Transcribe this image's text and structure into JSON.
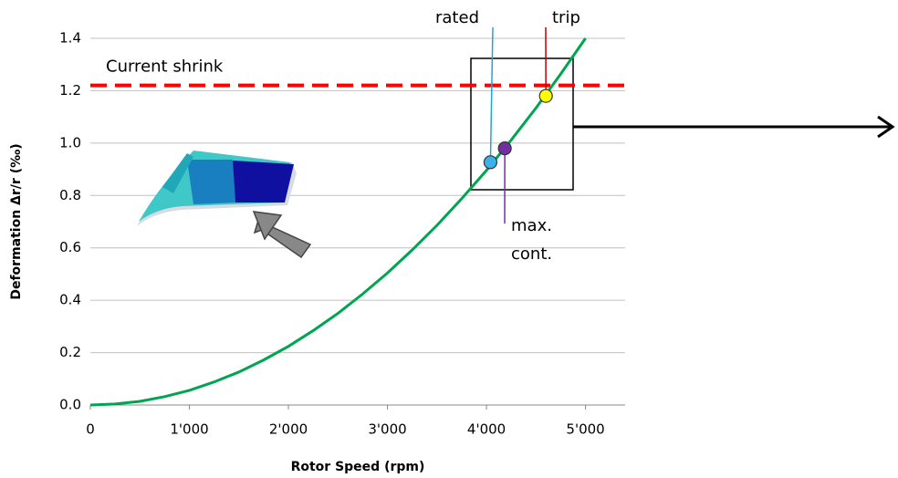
{
  "chart_data": {
    "type": "line",
    "x_label": "Rotor Speed (rpm)",
    "y_label": "Deformation Δr/r (‰)",
    "xlim": [
      0,
      5400
    ],
    "ylim": [
      0,
      1.4
    ],
    "xticks": [
      0,
      {
        "value": 1000,
        "label": "1'000"
      },
      {
        "value": 2000,
        "label": "2'000"
      },
      {
        "value": 3000,
        "label": "3'000"
      },
      {
        "value": 4000,
        "label": "4'000"
      },
      {
        "value": 5000,
        "label": "5'000"
      }
    ],
    "yticks": [
      {
        "value": 0,
        "label": "0.0"
      },
      0.2,
      0.4,
      0.6,
      0.8,
      {
        "value": 1,
        "label": "1.0"
      },
      1.2,
      1.4
    ],
    "grid": true,
    "series": [
      {
        "color": "#00a550",
        "x": [
          0,
          250,
          500,
          750,
          1000,
          1250,
          1500,
          1750,
          2000,
          2250,
          2500,
          2750,
          3000,
          3250,
          3500,
          3750,
          4000,
          4250,
          4500,
          4750,
          5000
        ],
        "values": [
          0,
          0.004,
          0.014,
          0.032,
          0.056,
          0.088,
          0.126,
          0.172,
          0.224,
          0.284,
          0.35,
          0.424,
          0.504,
          0.592,
          0.686,
          0.788,
          0.896,
          1.012,
          1.134,
          1.264,
          1.4
        ]
      }
    ],
    "reference_line": {
      "label": "Current shrink",
      "value": 1.22,
      "color": "#ff0000"
    },
    "points": [
      {
        "label": [
          "rated"
        ],
        "x": 4040,
        "y": 0.927,
        "color": "#3cb0e8",
        "text_color": "#1fa4e0"
      },
      {
        "label": [
          "max.",
          "cont."
        ],
        "x": 4185,
        "y": 0.98,
        "color": "#7030a0",
        "text_color": "#7030a0"
      },
      {
        "label": [
          "trip"
        ],
        "x": 4600,
        "y": 1.18,
        "color": "#ffff00",
        "text_color": "#c00000"
      }
    ]
  }
}
